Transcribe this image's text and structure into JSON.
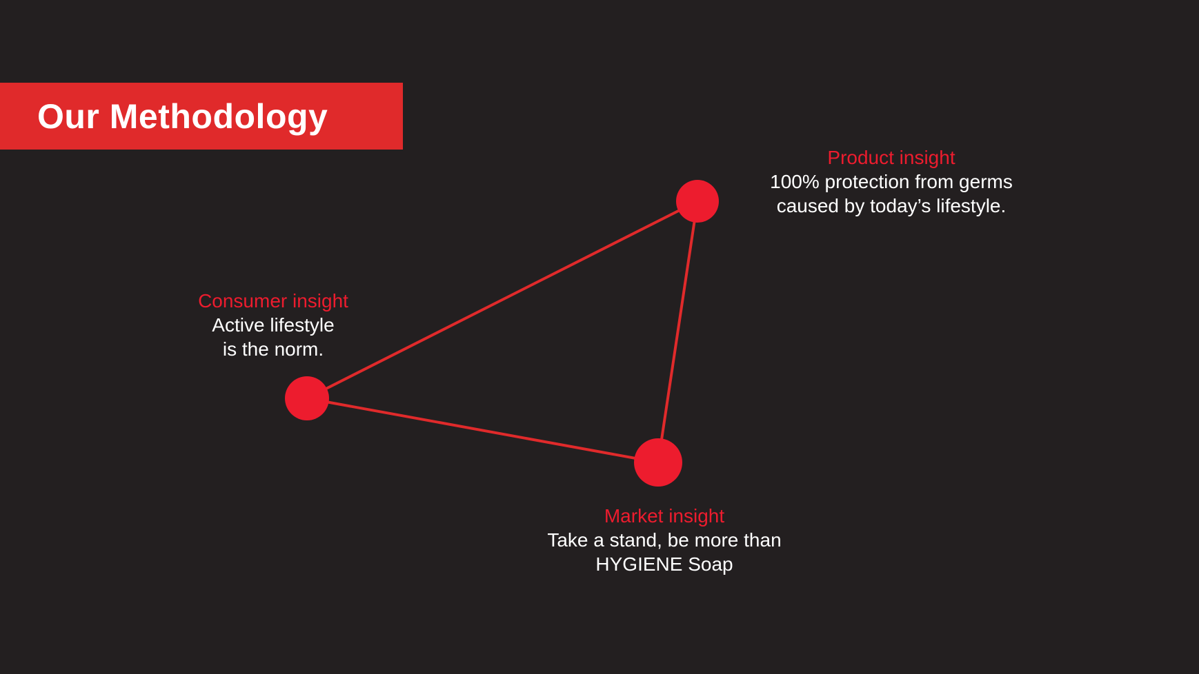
{
  "title": "Our Methodology",
  "colors": {
    "background": "#231f20",
    "accent": "#e02a2b",
    "node": "#ed1c2e",
    "text": "#ffffff"
  },
  "nodes": [
    {
      "id": "product",
      "heading": "Product insight",
      "line1": "100% protection from germs",
      "line2": "caused by today’s lifestyle."
    },
    {
      "id": "consumer",
      "heading": "Consumer insight",
      "line1": "Active lifestyle",
      "line2": "is the norm."
    },
    {
      "id": "market",
      "heading": "Market insight",
      "line1": "Take a stand, be more than",
      "line2": "HYGIENE Soap"
    }
  ],
  "edges": [
    [
      "consumer",
      "product"
    ],
    [
      "product",
      "market"
    ],
    [
      "market",
      "consumer"
    ]
  ]
}
